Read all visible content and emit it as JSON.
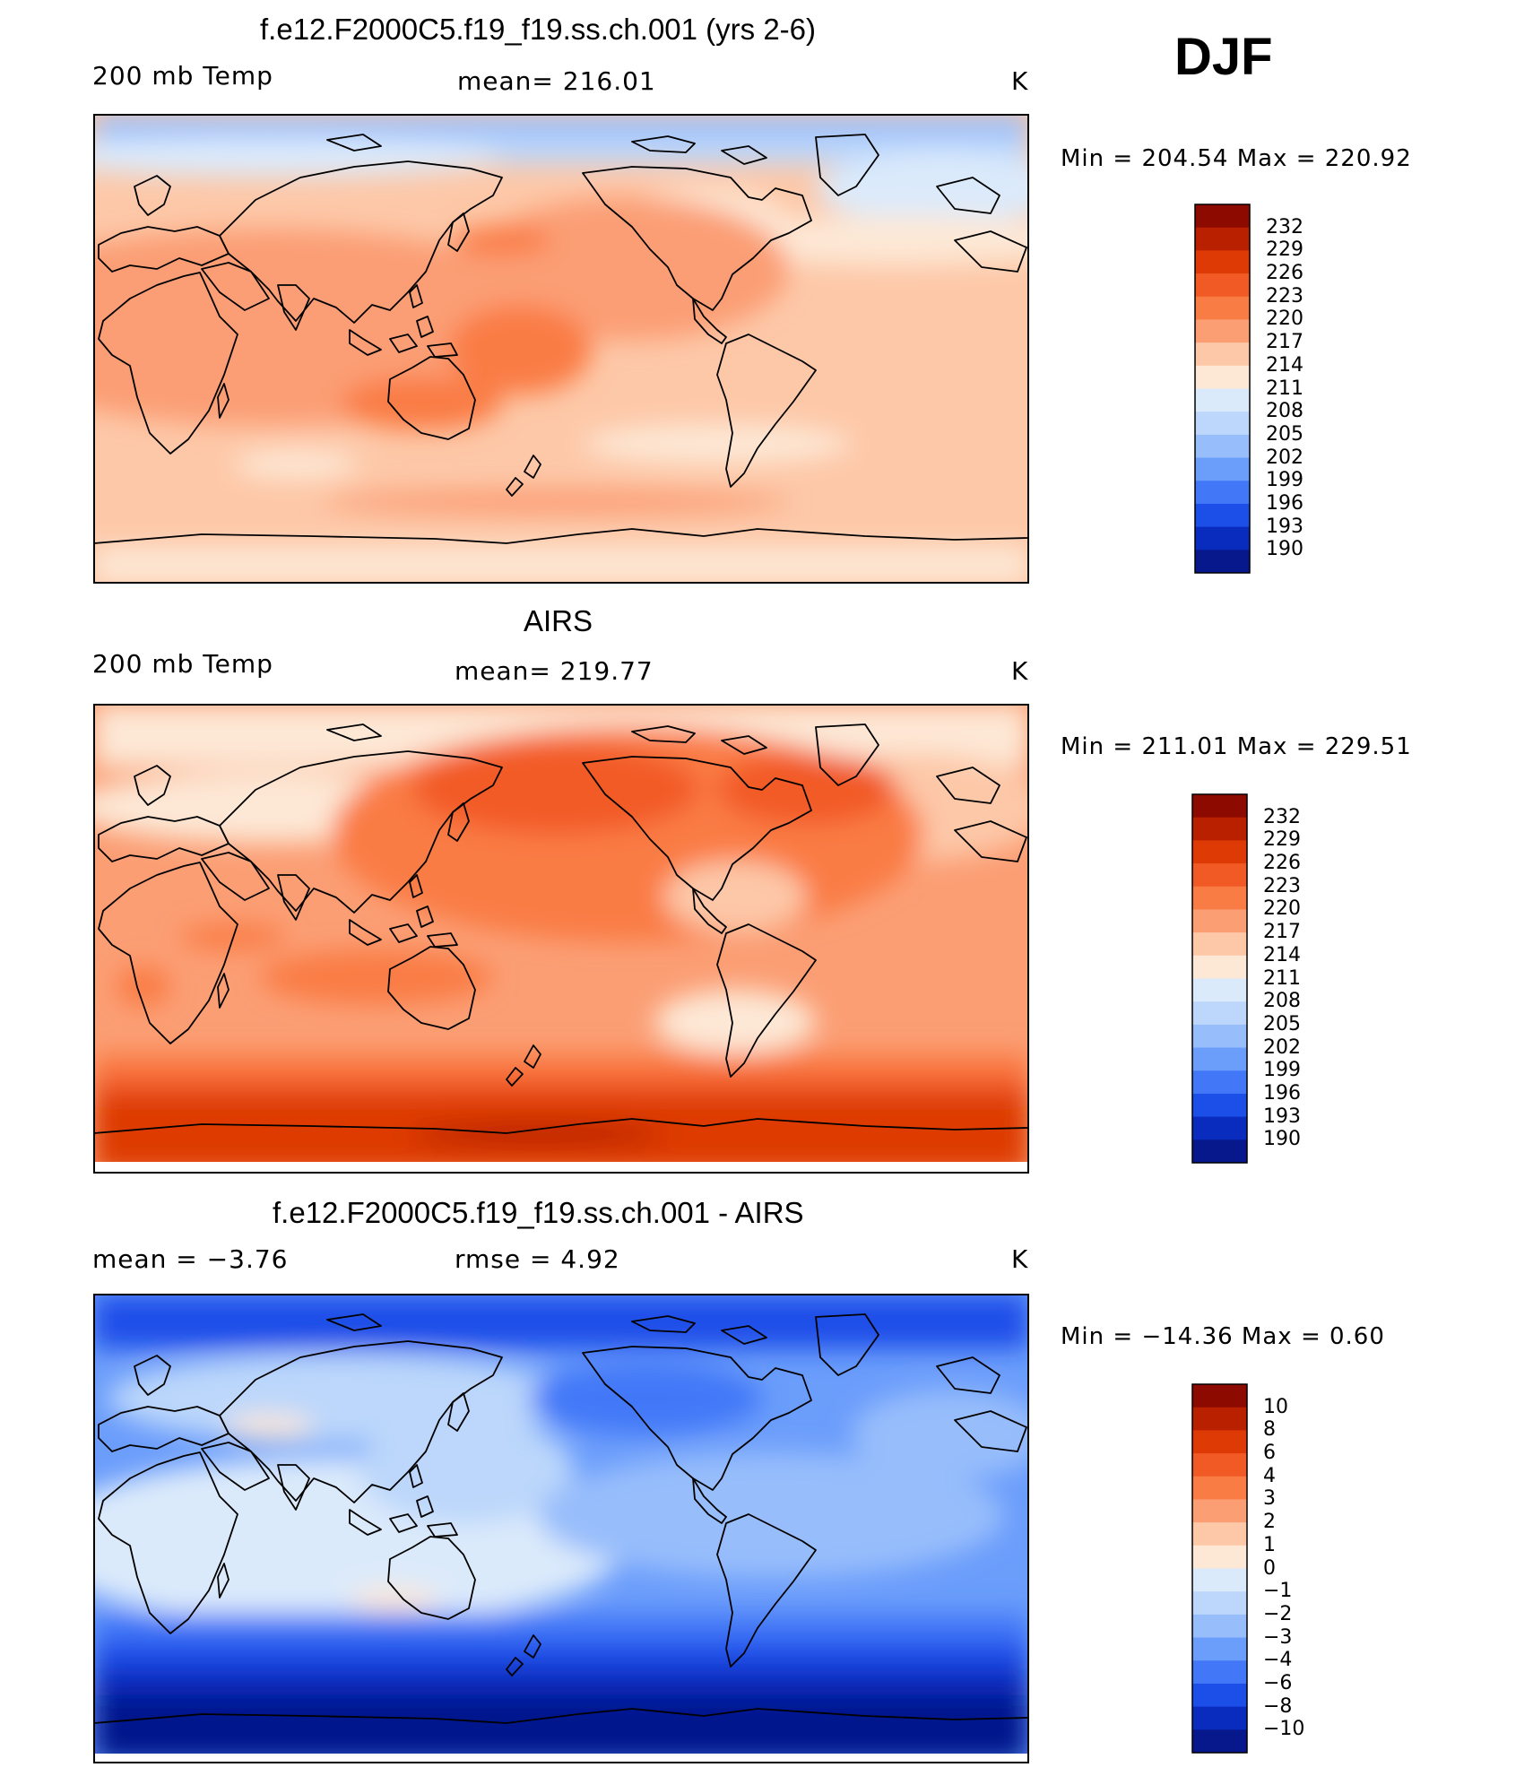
{
  "season": "DJF",
  "panels": [
    {
      "id": "model",
      "title": "f.e12.F2000C5.f19_f19.ss.ch.001 (yrs 2-6)",
      "left_label": "200 mb Temp",
      "center_label": "mean=  216.01",
      "right_label": "K",
      "minmax": "Min  =  204.54  Max  =  220.92",
      "colorbar_ticks": [
        "232",
        "229",
        "226",
        "223",
        "220",
        "217",
        "214",
        "211",
        "208",
        "205",
        "202",
        "199",
        "196",
        "193",
        "190"
      ]
    },
    {
      "id": "obs",
      "title": "AIRS",
      "left_label": "200 mb Temp",
      "center_label": "mean=  219.77",
      "right_label": "K",
      "minmax": "Min  =  211.01  Max  =  229.51",
      "colorbar_ticks": [
        "232",
        "229",
        "226",
        "223",
        "220",
        "217",
        "214",
        "211",
        "208",
        "205",
        "202",
        "199",
        "196",
        "193",
        "190"
      ]
    },
    {
      "id": "diff",
      "title": "f.e12.F2000C5.f19_f19.ss.ch.001 - AIRS",
      "left_label": "mean  =    −3.76",
      "center_label": "rmse  =     4.92",
      "right_label": "K",
      "minmax": "Min  =  −14.36  Max  =     0.60",
      "colorbar_ticks": [
        "10",
        "8",
        "6",
        "4",
        "3",
        "2",
        "1",
        "0",
        "−1",
        "−2",
        "−3",
        "−4",
        "−6",
        "−8",
        "−10"
      ]
    }
  ],
  "colorbar_colors": [
    "#8c0a00",
    "#b82000",
    "#dd3a05",
    "#f25a25",
    "#fa7c45",
    "#fb9e74",
    "#fdc8a8",
    "#fde8d6",
    "#dbeafb",
    "#bcd7fb",
    "#97bdfb",
    "#6b9dfb",
    "#4278f8",
    "#1c4ee8",
    "#0a2cbe",
    "#06188c"
  ]
}
